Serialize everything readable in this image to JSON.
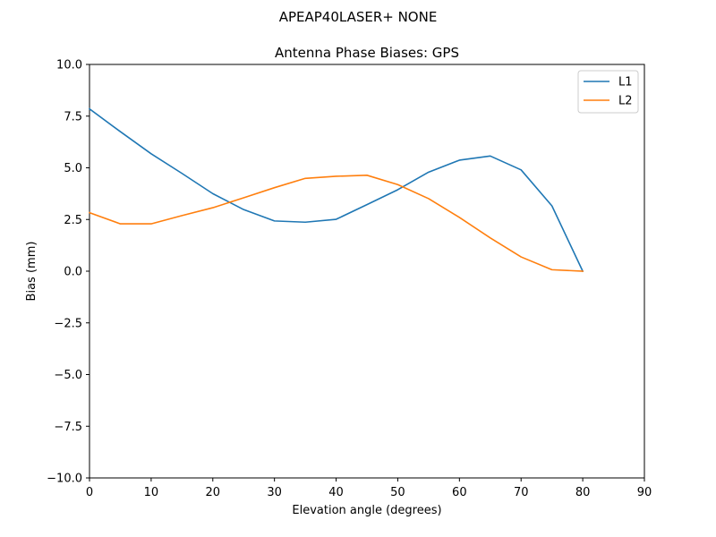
{
  "figure": {
    "suptitle": "APEAP40LASER+   NONE"
  },
  "chart_data": {
    "type": "line",
    "title": "Antenna Phase Biases: GPS",
    "xlabel": "Elevation angle (degrees)",
    "ylabel": "Bias (mm)",
    "xlim": [
      0,
      90
    ],
    "ylim": [
      -10,
      10
    ],
    "x_ticks": [
      0,
      10,
      20,
      30,
      40,
      50,
      60,
      70,
      80,
      90
    ],
    "y_ticks": [
      -10.0,
      -7.5,
      -5.0,
      -2.5,
      0.0,
      2.5,
      5.0,
      7.5,
      10.0
    ],
    "x_tick_labels": [
      "0",
      "10",
      "20",
      "30",
      "40",
      "50",
      "60",
      "70",
      "80",
      "90"
    ],
    "y_tick_labels": [
      "−10.0",
      "−7.5",
      "−5.0",
      "−2.5",
      "0.0",
      "2.5",
      "5.0",
      "7.5",
      "10.0"
    ],
    "grid": false,
    "legend_position": "top-right",
    "x": [
      0,
      5,
      10,
      15,
      20,
      25,
      30,
      35,
      40,
      45,
      50,
      55,
      60,
      65,
      70,
      75,
      80
    ],
    "series": [
      {
        "name": "L1",
        "color": "#1f77b4",
        "values": [
          7.85,
          6.75,
          5.68,
          4.73,
          3.75,
          2.98,
          2.43,
          2.37,
          2.51,
          3.22,
          3.94,
          4.79,
          5.37,
          5.57,
          4.9,
          3.16,
          0.0
        ]
      },
      {
        "name": "L2",
        "color": "#ff7f0e",
        "values": [
          2.83,
          2.29,
          2.29,
          2.69,
          3.07,
          3.55,
          4.04,
          4.49,
          4.59,
          4.64,
          4.19,
          3.51,
          2.6,
          1.61,
          0.69,
          0.07,
          0.0
        ]
      }
    ]
  }
}
